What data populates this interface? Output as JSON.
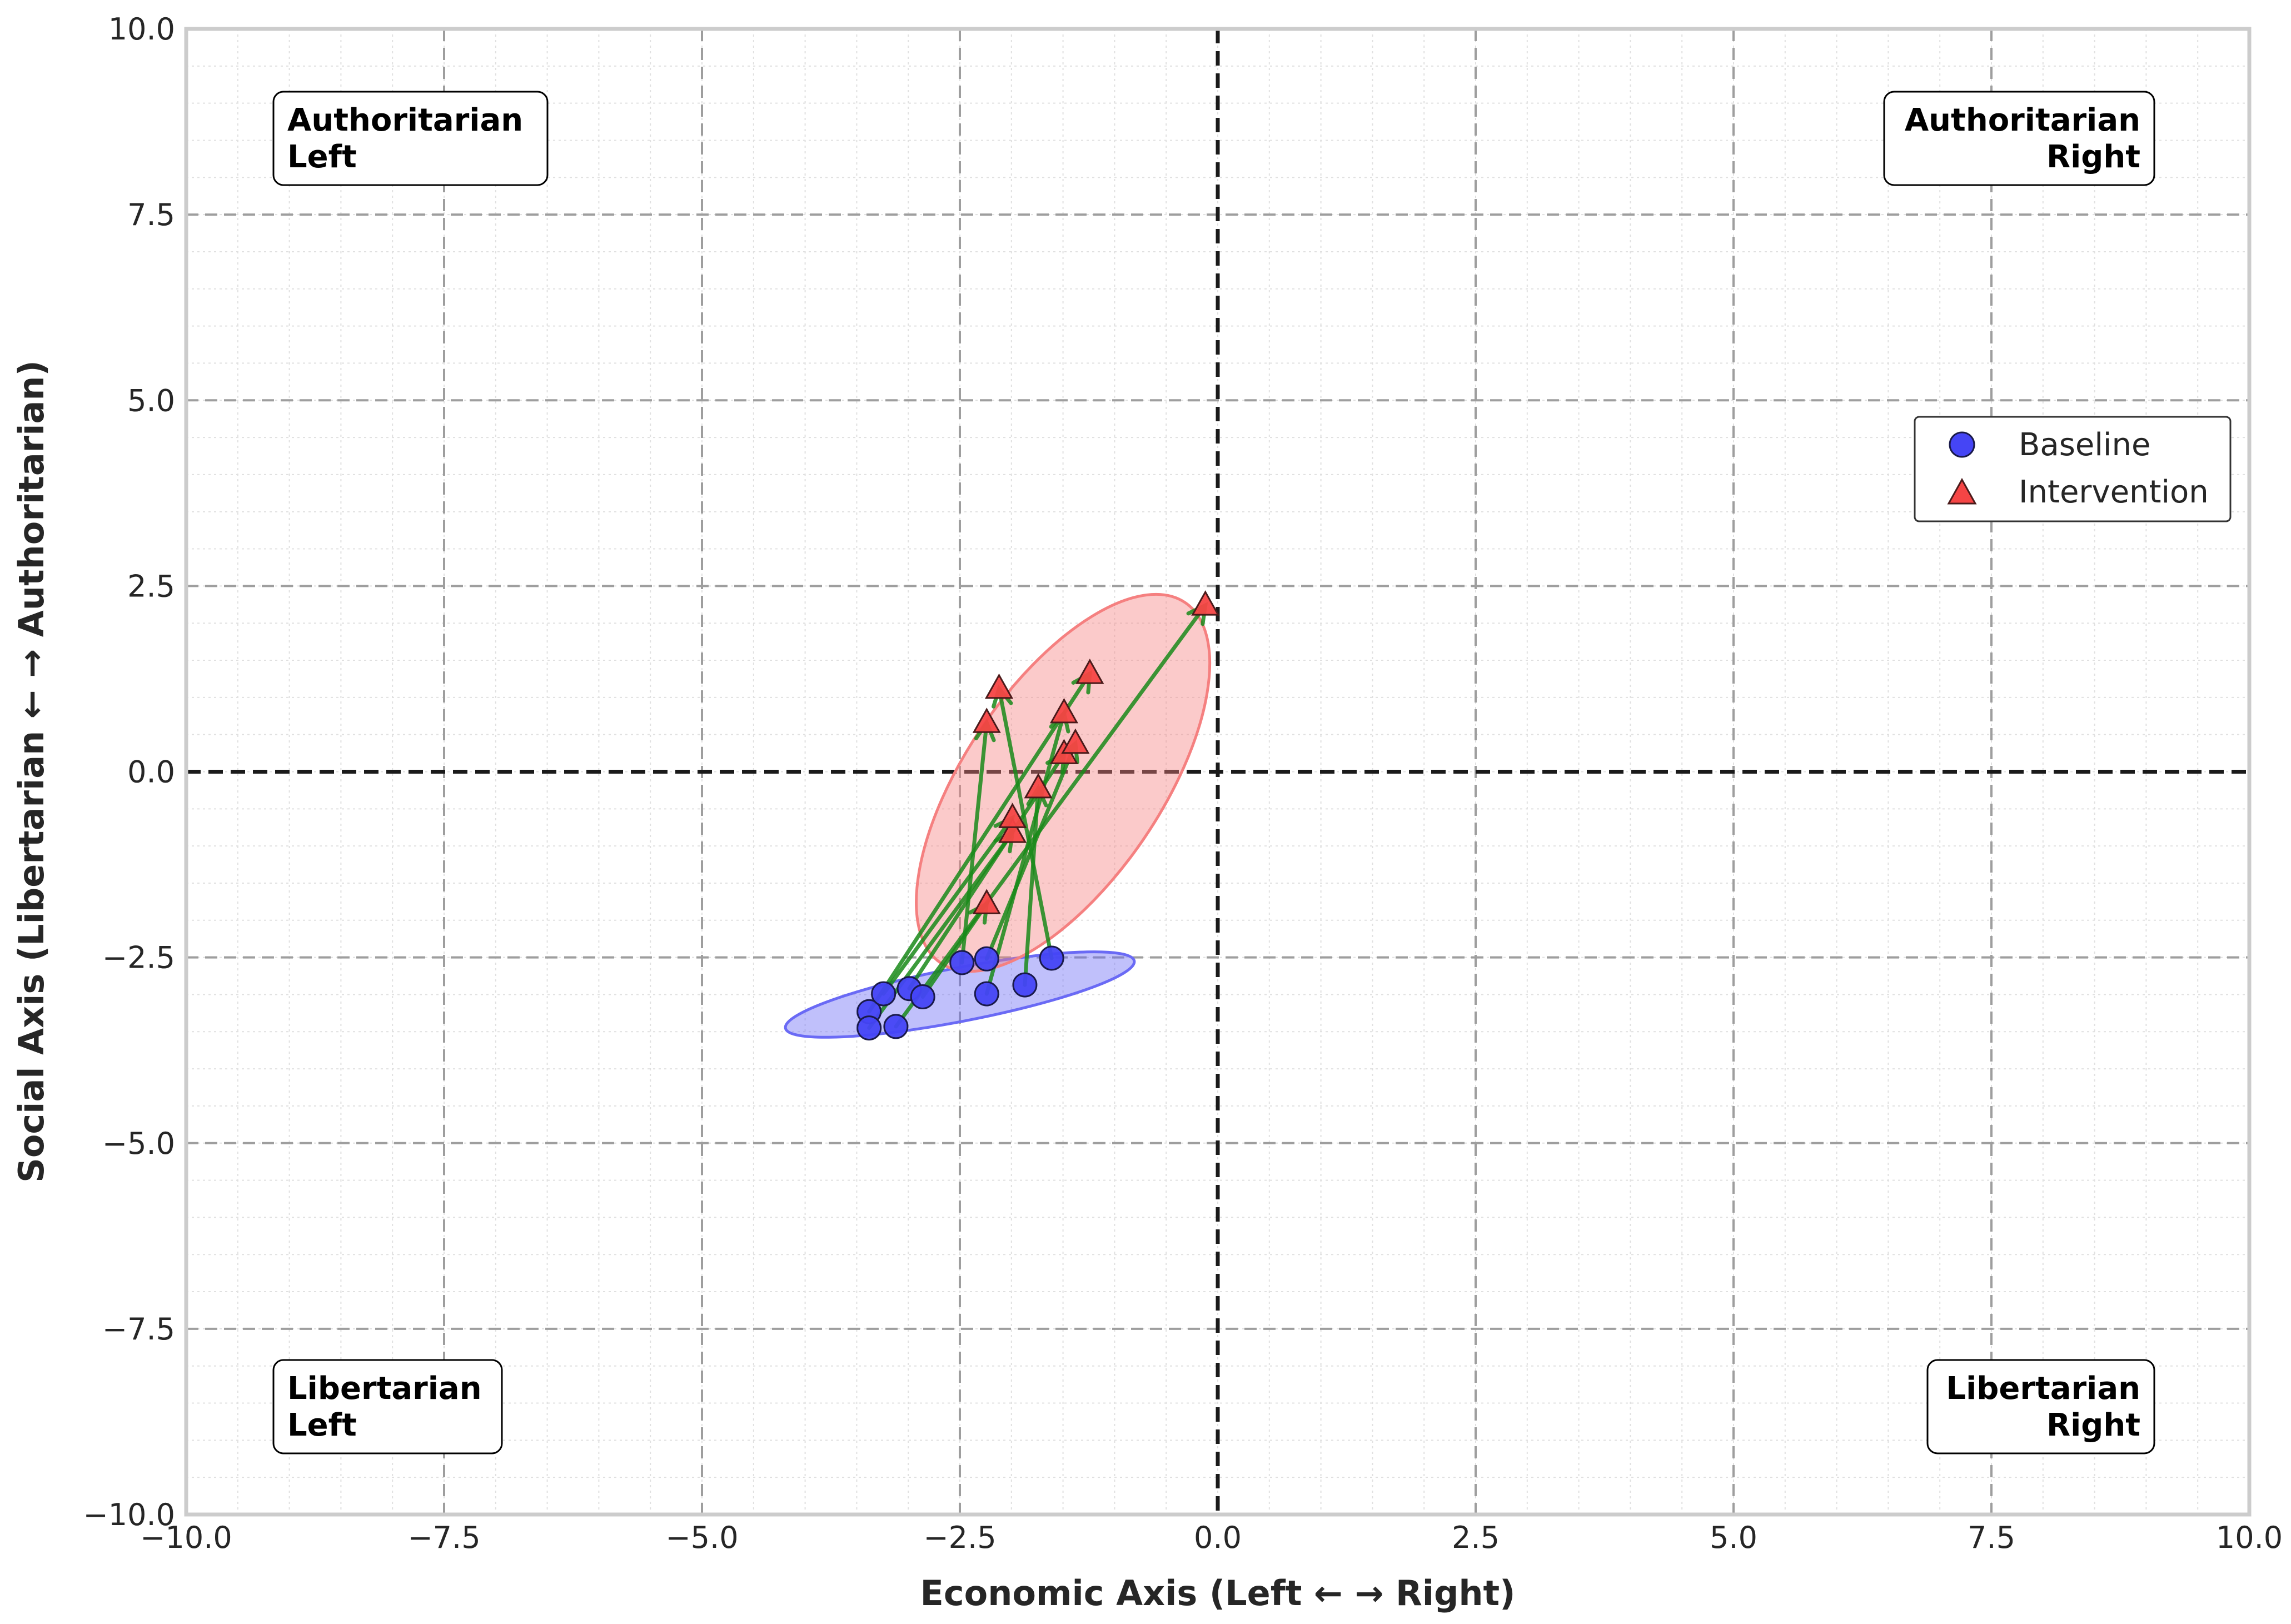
{
  "chart_data": {
    "type": "scatter",
    "xlabel": "Economic Axis (Left ← → Right)",
    "ylabel": "Social Axis (Libertarian ← → Authoritarian)",
    "xlim": [
      -10,
      10
    ],
    "ylim": [
      -10,
      10
    ],
    "xticks": [
      -10.0,
      -7.5,
      -5.0,
      -2.5,
      0.0,
      2.5,
      5.0,
      7.5,
      10.0
    ],
    "yticks": [
      -10.0,
      -7.5,
      -5.0,
      -2.5,
      0.0,
      2.5,
      5.0,
      7.5,
      10.0
    ],
    "xtick_labels": [
      "−10.0",
      "−7.5",
      "−5.0",
      "−2.5",
      "0.0",
      "2.5",
      "5.0",
      "7.5",
      "10.0"
    ],
    "ytick_labels": [
      "−10.0",
      "−7.5",
      "−5.0",
      "−2.5",
      "0.0",
      "2.5",
      "5.0",
      "7.5",
      "10.0"
    ],
    "grid": true,
    "minor_grid": true,
    "legend_position": "center-right",
    "quadrant_labels": [
      {
        "id": "authoritarian-left",
        "lines": [
          "Authoritarian",
          "Left"
        ],
        "align": "left",
        "quadrant": "top-left"
      },
      {
        "id": "authoritarian-right",
        "lines": [
          "Authoritarian",
          "Right"
        ],
        "align": "right",
        "quadrant": "top-right"
      },
      {
        "id": "libertarian-left",
        "lines": [
          "Libertarian",
          "Left"
        ],
        "align": "left",
        "quadrant": "bottom-left"
      },
      {
        "id": "libertarian-right",
        "lines": [
          "Libertarian",
          "Right"
        ],
        "align": "right",
        "quadrant": "bottom-right"
      }
    ],
    "series": [
      {
        "name": "Baseline",
        "marker": "circle",
        "color": "#4545f5",
        "x": [
          -3.38,
          -3.38,
          -3.12,
          -3.24,
          -2.99,
          -2.86,
          -2.48,
          -2.24,
          -2.24,
          -1.87,
          -1.61
        ],
        "y": [
          -3.23,
          -3.45,
          -3.43,
          -2.99,
          -2.92,
          -3.03,
          -2.57,
          -2.52,
          -2.99,
          -2.87,
          -2.51
        ]
      },
      {
        "name": "Intervention",
        "marker": "triangle",
        "color": "#f54545",
        "x": [
          -2.24,
          -2.24,
          -2.12,
          -1.99,
          -1.99,
          -1.74,
          -1.49,
          -1.49,
          -1.38,
          -1.24,
          -0.12
        ],
        "y": [
          -1.78,
          0.66,
          1.12,
          -0.82,
          -0.62,
          -0.22,
          0.24,
          0.79,
          0.38,
          1.32,
          2.24
        ]
      }
    ],
    "shifts": [
      {
        "from": 1,
        "to": 3
      },
      {
        "from": 5,
        "to": 0
      },
      {
        "from": 10,
        "to": 2
      },
      {
        "from": 4,
        "to": 6
      },
      {
        "from": 8,
        "to": 7
      },
      {
        "from": 3,
        "to": 4
      },
      {
        "from": 9,
        "to": 5
      },
      {
        "from": 6,
        "to": 1
      },
      {
        "from": 7,
        "to": 8
      },
      {
        "from": 0,
        "to": 9
      },
      {
        "from": 2,
        "to": 10
      }
    ],
    "shift_color": "#1a8a1a",
    "ellipses": [
      {
        "series": "Baseline",
        "color": "#6a6af5",
        "center": [
          -2.5,
          -3.0
        ],
        "width": 3.5,
        "height": 0.7,
        "angle_deg": 15
      },
      {
        "series": "Intervention",
        "color": "#f58080",
        "center": [
          -1.5,
          -0.15
        ],
        "width": 5.4,
        "height": 2.0,
        "angle_deg": 64
      }
    ],
    "colors": {
      "axis_zero_line": "#1a1a1a",
      "major_grid": "#9e9e9e",
      "minor_grid": "#e0e0e0",
      "frame": "#cccccc"
    }
  }
}
